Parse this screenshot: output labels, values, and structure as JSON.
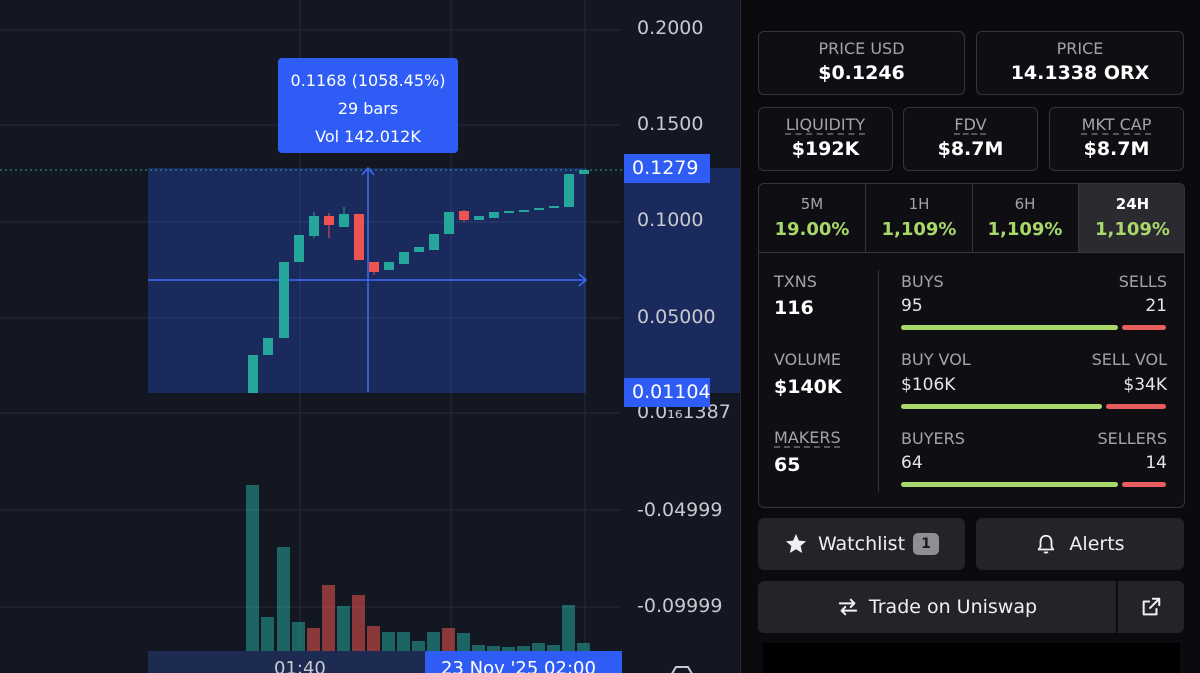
{
  "chart": {
    "price_axis": [
      "0.2000",
      "0.1500",
      "0.1000",
      "0.05000",
      "0.0₁₆1387",
      "-0.04999",
      "-0.09999"
    ],
    "current_price_tag": "0.1279",
    "range_low_tag": "0.01104",
    "tooltip": {
      "change": "0.1168 (1058.45%)",
      "bars": "29 bars",
      "volume": "Vol 142.012K"
    },
    "time_axis": {
      "left": "01:40",
      "selected": "23 Nov '25   02:00"
    },
    "colors": {
      "up": "#26a69a",
      "down": "#ef5350",
      "selection": "#2f5cf5",
      "background": "#131722"
    }
  },
  "panel": {
    "price_usd": {
      "label": "PRICE USD",
      "value": "$0.1246"
    },
    "price_native": {
      "label": "PRICE",
      "value": "14.1338 ORX"
    },
    "liquidity": {
      "label": "LIQUIDITY",
      "value": "$192K"
    },
    "fdv": {
      "label": "FDV",
      "value": "$8.7M"
    },
    "mkt_cap": {
      "label": "MKT CAP",
      "value": "$8.7M"
    },
    "timeframes": [
      {
        "label": "5M",
        "value": "19.00%"
      },
      {
        "label": "1H",
        "value": "1,109%"
      },
      {
        "label": "6H",
        "value": "1,109%"
      },
      {
        "label": "24H",
        "value": "1,109%"
      }
    ],
    "active_timeframe": "24H",
    "stats": {
      "txns": {
        "label": "TXNS",
        "value": "116"
      },
      "volume": {
        "label": "VOLUME",
        "value": "$140K"
      },
      "makers": {
        "label": "MAKERS",
        "value": "65"
      },
      "buys": {
        "label": "BUYS",
        "value": "95",
        "other_label": "SELLS",
        "other_value": "21",
        "buy_share": 0.82
      },
      "buy_vol": {
        "label": "BUY VOL",
        "value": "$106K",
        "other_label": "SELL VOL",
        "other_value": "$34K",
        "buy_share": 0.76
      },
      "buyers": {
        "label": "BUYERS",
        "value": "64",
        "other_label": "SELLERS",
        "other_value": "14",
        "buy_share": 0.82
      }
    },
    "watchlist": {
      "label": "Watchlist",
      "count": "1"
    },
    "alerts": {
      "label": "Alerts"
    },
    "trade": {
      "label": "Trade on Uniswap"
    },
    "colors": {
      "positive": "#a8d86a",
      "negative": "#e85d5d"
    }
  }
}
